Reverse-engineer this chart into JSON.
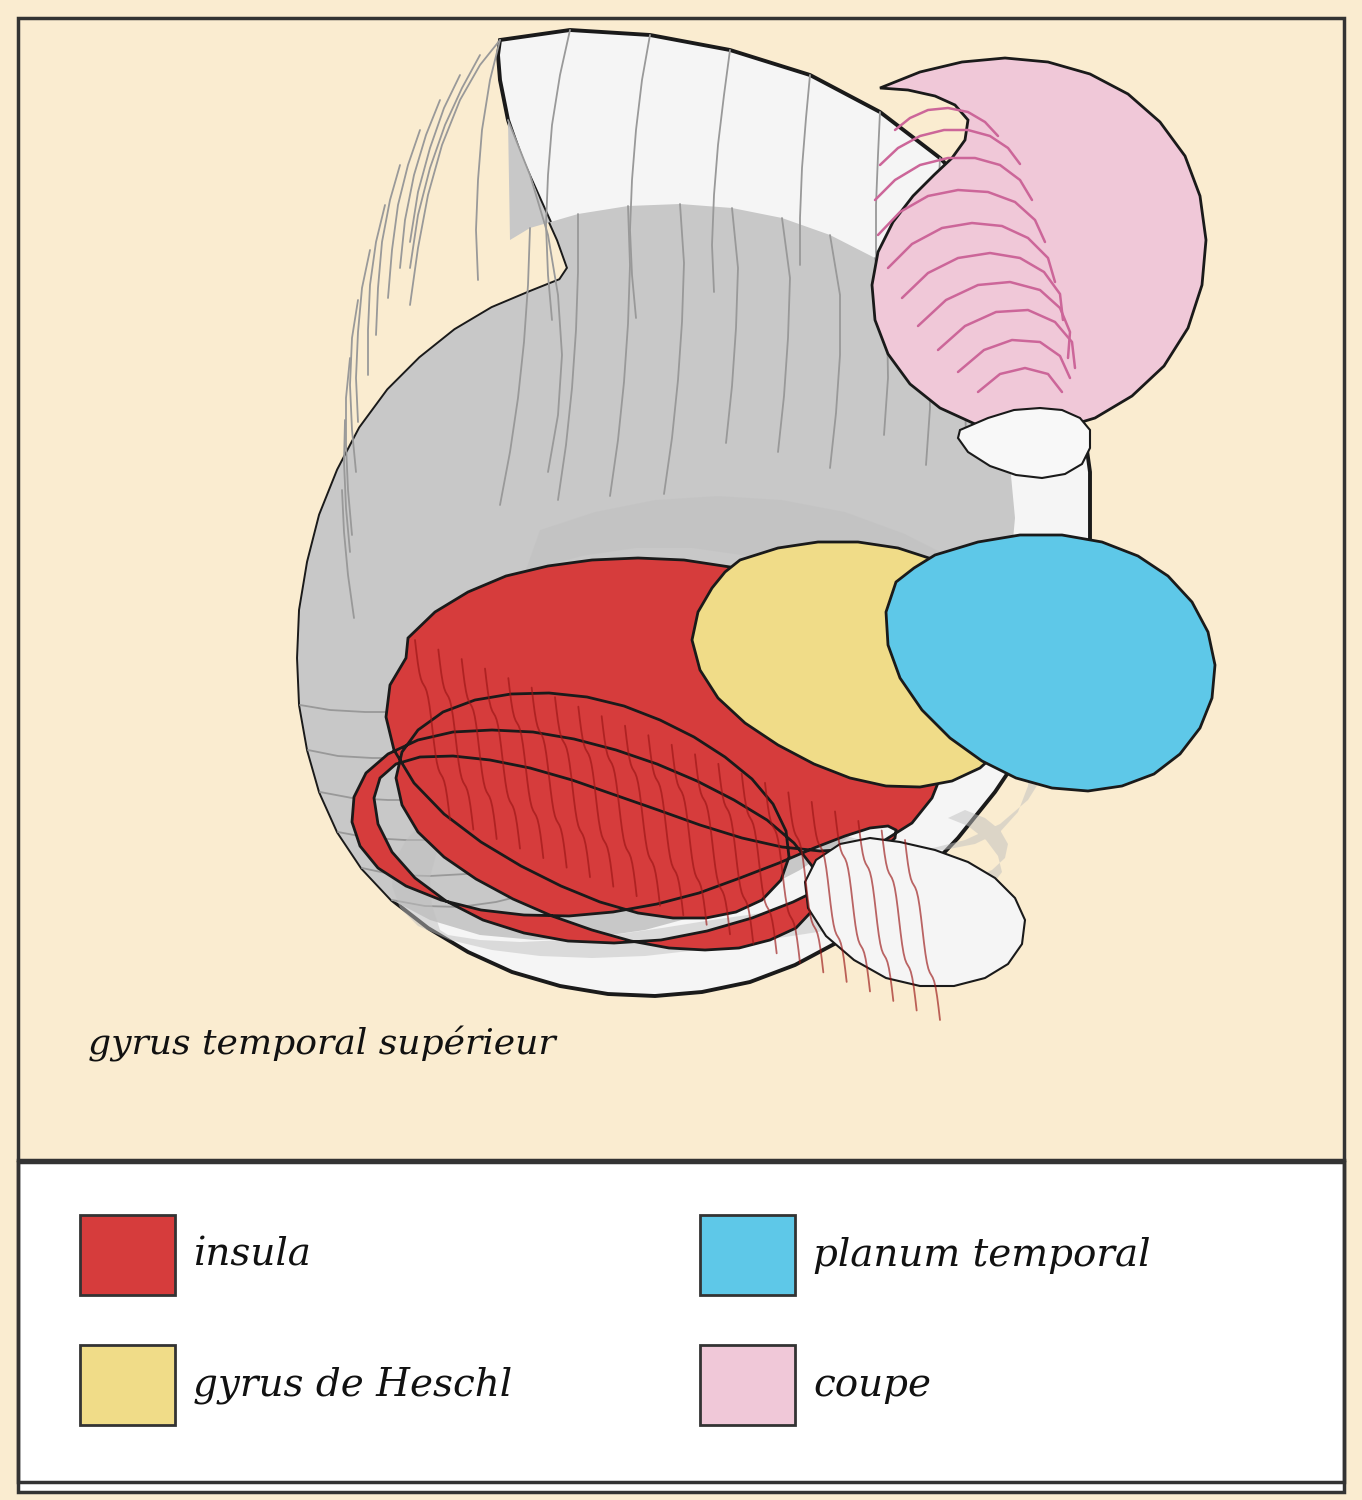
{
  "background_color": "#faecd0",
  "legend_bg": "#ffffff",
  "brain_fill": "#f5f5f5",
  "brain_stroke": "#1a1a1a",
  "gray_region": "#c0c0c0",
  "insula_color": "#d63c3c",
  "heschl_color": "#f0dc88",
  "planum_color": "#5ec8e8",
  "coupe_color": "#f0c8d8",
  "coupe_stroke": "#cc88aa",
  "white_matter": "#f0f0f0",
  "legend_items": [
    {
      "label": "insula",
      "color": "#d63c3c"
    },
    {
      "label": "gyrus de Heschl",
      "color": "#f0dc88"
    },
    {
      "label": "planum temporal",
      "color": "#5ec8e8"
    },
    {
      "label": "coupe",
      "color": "#f0c8d8"
    }
  ],
  "annotation": "gyrus temporal supérieur",
  "legend_fontsize": 28
}
